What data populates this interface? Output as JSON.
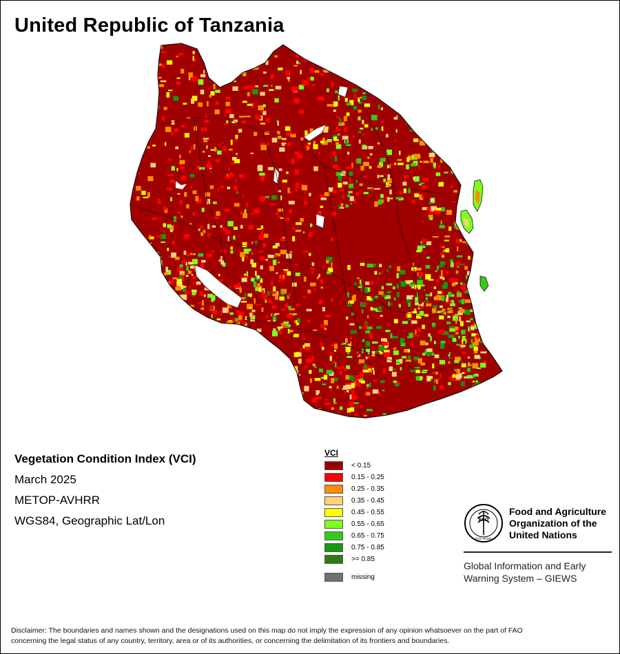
{
  "title": "United Republic of Tanzania",
  "meta": {
    "index_name": "Vegetation Condition Index (VCI)",
    "period": "March 2025",
    "sensor": "METOP-AVHRR",
    "projection": "WGS84, Geographic Lat/Lon"
  },
  "legend": {
    "title": "VCI",
    "classes": [
      {
        "label": "< 0.15",
        "color": "#9b0000"
      },
      {
        "label": "0.15 - 0.25",
        "color": "#ff0000"
      },
      {
        "label": "0.25 - 0.35",
        "color": "#ff8c00"
      },
      {
        "label": "0.35 - 0.45",
        "color": "#ffd27a"
      },
      {
        "label": "0.45 - 0.55",
        "color": "#ffff00"
      },
      {
        "label": "0.55 - 0.65",
        "color": "#7dff1e"
      },
      {
        "label": "0.65 - 0.75",
        "color": "#38c81a"
      },
      {
        "label": "0.75 - 0.85",
        "color": "#139a10"
      },
      {
        "label": ">= 0.85",
        "color": "#2e7a12"
      }
    ],
    "missing": {
      "label": "missing",
      "color": "#707070"
    }
  },
  "fao": {
    "name_lines": [
      "Food and Agriculture",
      "Organization of the",
      "United Nations"
    ],
    "logo_text": "FAO",
    "logo_motto": "FIAT PANIS",
    "giews_lines": [
      "Global Information and Early",
      "Warning System – GIEWS"
    ]
  },
  "disclaimer_lines": [
    "Disclaimer: The boundaries and names shown and the designations used on this map do not imply the expression of any opinion whatsoever on the part of FAO",
    "concerning the legal status of any country, territory, area or of its authorities, or concerning the delimitation of its frontiers and boundaries."
  ]
}
